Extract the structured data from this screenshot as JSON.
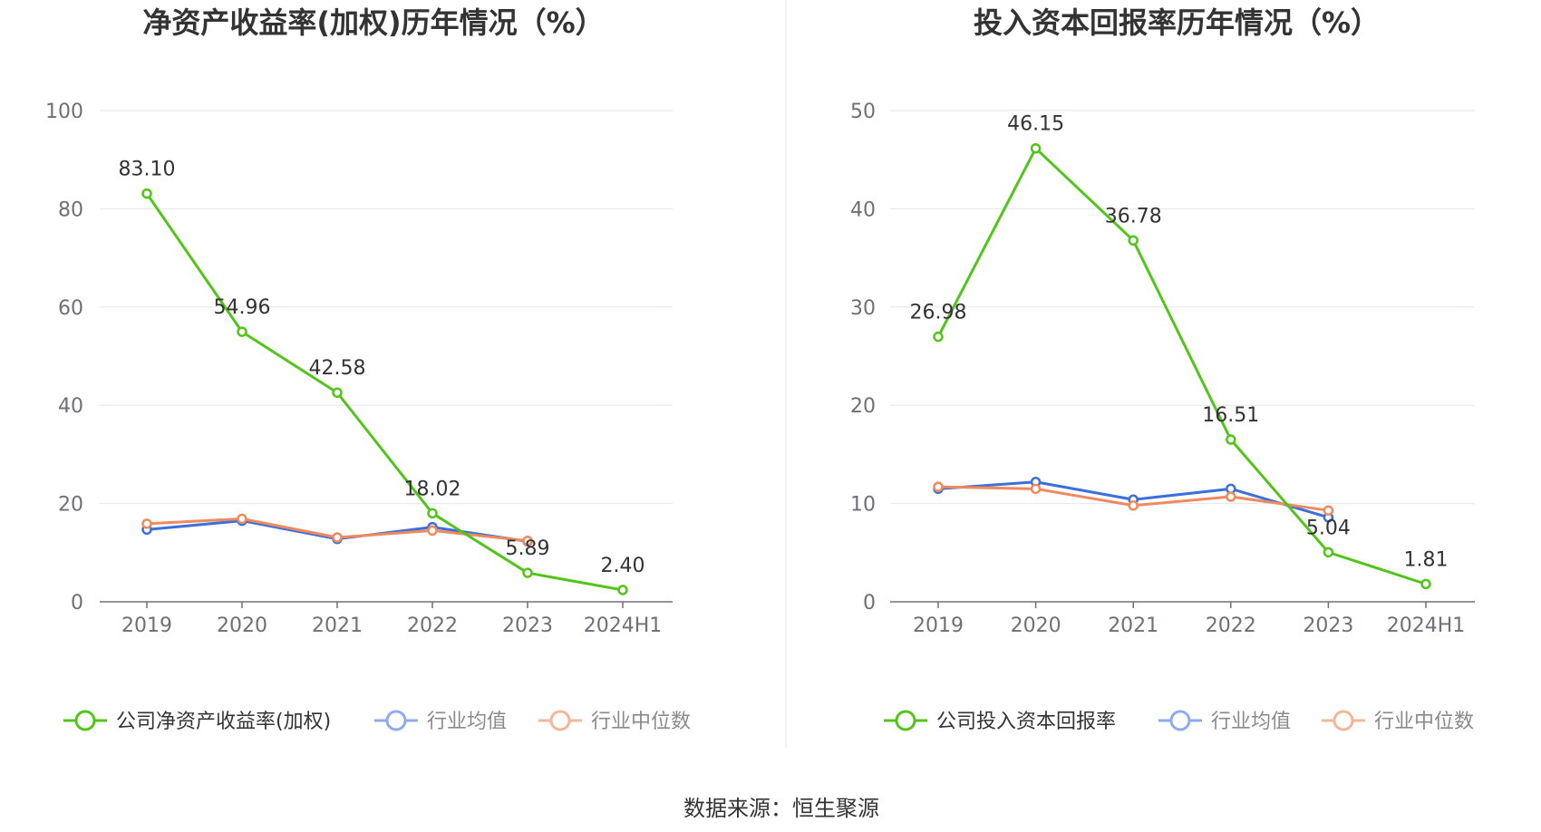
{
  "source_text": "数据来源：恒生聚源",
  "chart_data": [
    {
      "type": "line",
      "title": "净资产收益率(加权)历年情况（%）",
      "categories": [
        "2019",
        "2020",
        "2021",
        "2022",
        "2023",
        "2024H1"
      ],
      "ylim": [
        0,
        100
      ],
      "yticks": [
        0,
        20,
        40,
        60,
        80,
        100
      ],
      "grid": true,
      "legend_position": "bottom",
      "series": [
        {
          "name": "公司净资产收益率(加权)",
          "color": "#52c41a",
          "values": [
            83.1,
            54.96,
            42.58,
            18.02,
            5.89,
            2.4
          ],
          "labels": [
            "83.10",
            "54.96",
            "42.58",
            "18.02",
            "5.89",
            "2.40"
          ]
        },
        {
          "name": "行业均值",
          "color": "#3b6fdc",
          "values": [
            14.7,
            16.5,
            12.8,
            15.2,
            12.3,
            null
          ]
        },
        {
          "name": "行业中位数",
          "color": "#f08a5d",
          "values": [
            15.9,
            16.9,
            13.1,
            14.5,
            12.4,
            null
          ]
        }
      ]
    },
    {
      "type": "line",
      "title": "投入资本回报率历年情况（%）",
      "categories": [
        "2019",
        "2020",
        "2021",
        "2022",
        "2023",
        "2024H1"
      ],
      "ylim": [
        0,
        50
      ],
      "yticks": [
        0,
        10,
        20,
        30,
        40,
        50
      ],
      "grid": true,
      "legend_position": "bottom",
      "series": [
        {
          "name": "公司投入资本回报率",
          "color": "#52c41a",
          "values": [
            26.98,
            46.15,
            36.78,
            16.51,
            5.04,
            1.81
          ],
          "labels": [
            "26.98",
            "46.15",
            "36.78",
            "16.51",
            "5.04",
            "1.81"
          ]
        },
        {
          "name": "行业均值",
          "color": "#3b6fdc",
          "values": [
            11.5,
            12.2,
            10.4,
            11.5,
            8.6,
            null
          ]
        },
        {
          "name": "行业中位数",
          "color": "#f08a5d",
          "values": [
            11.7,
            11.5,
            9.8,
            10.7,
            9.3,
            null
          ]
        }
      ]
    }
  ]
}
